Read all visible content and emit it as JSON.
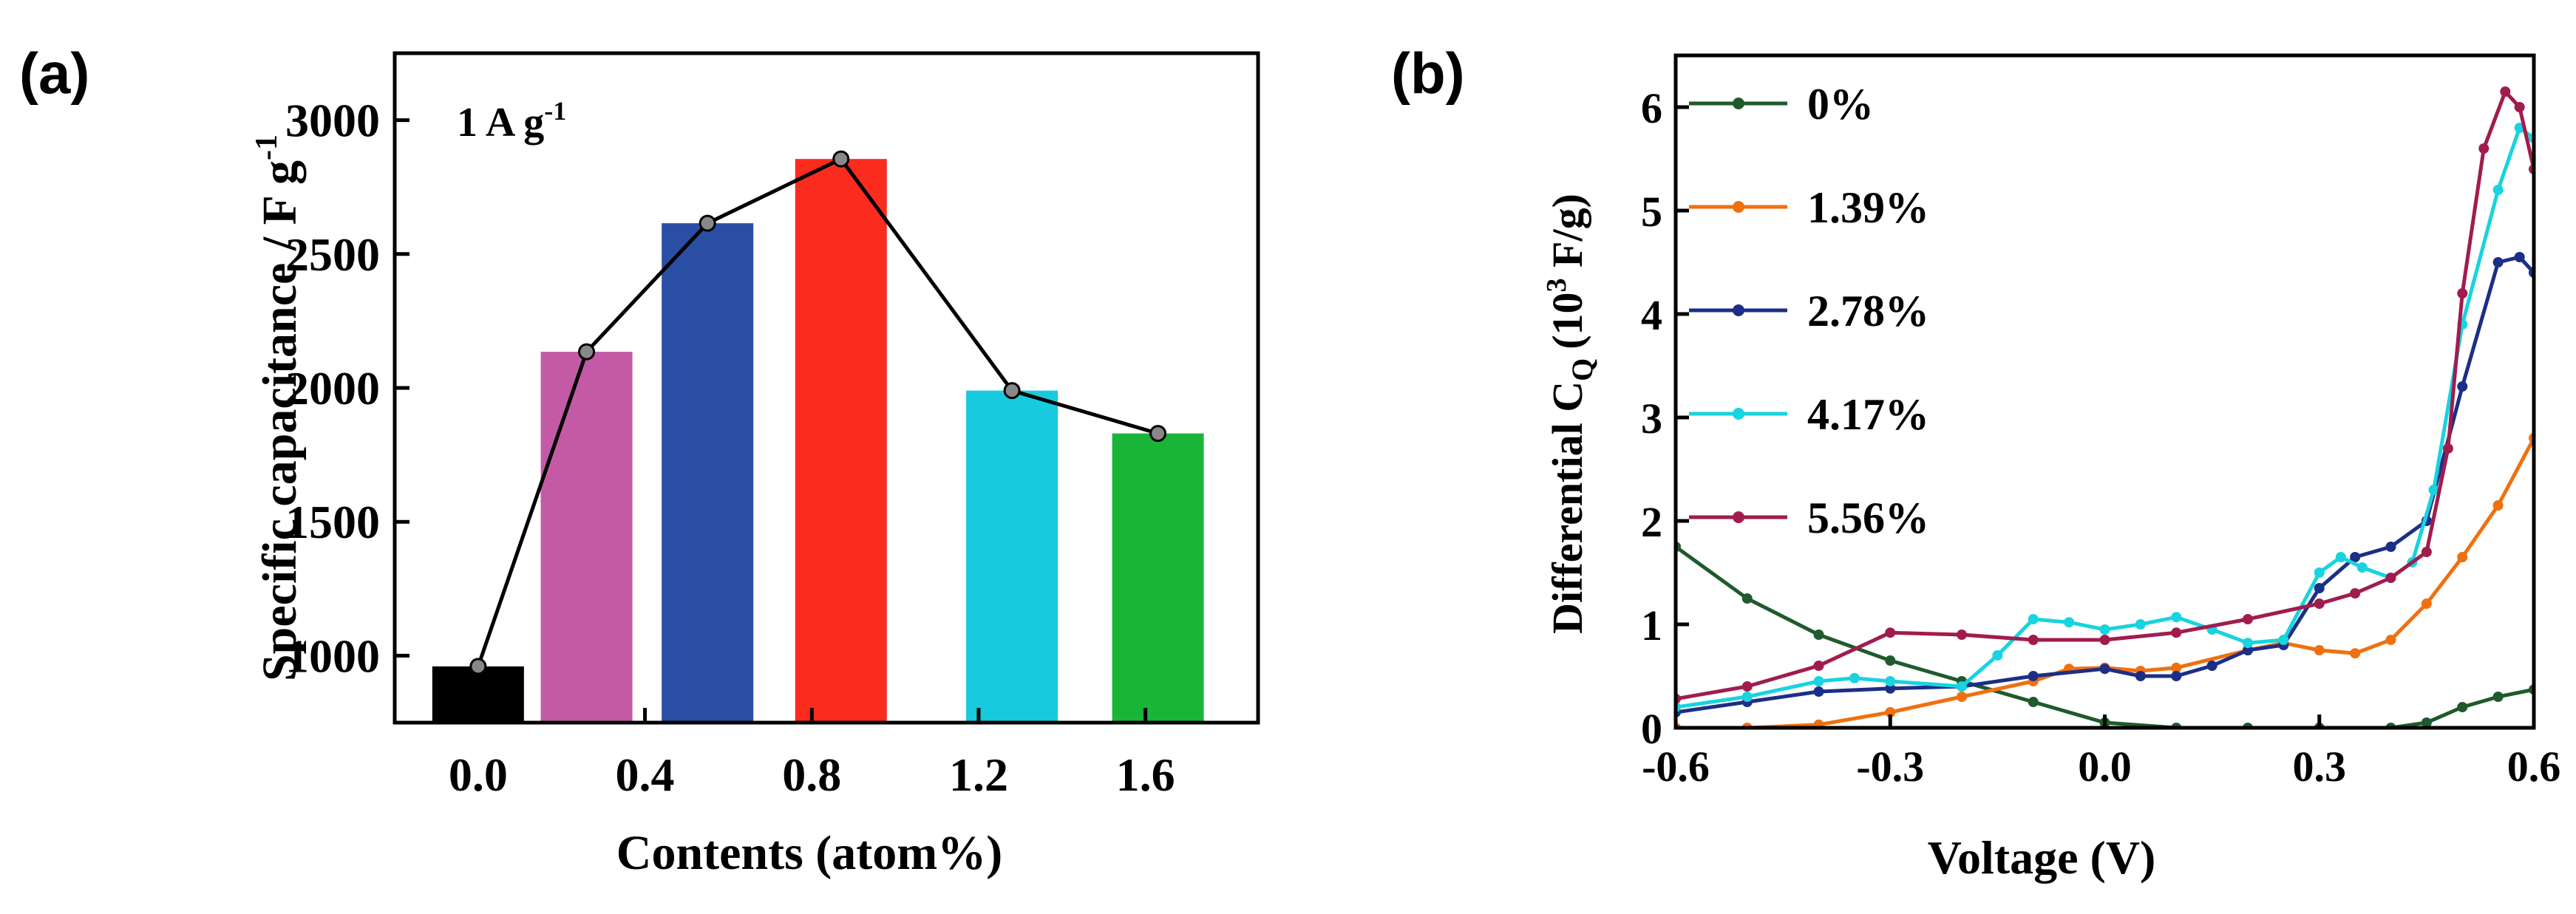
{
  "chart_data": [
    {
      "panel": "(a)",
      "type": "bar",
      "annotation": "1 A g",
      "annotation_sup": "-1",
      "xlabel": "Contents (atom%)",
      "ylabel": "Specific capacitance / F g",
      "ylabel_sup": "-1",
      "xlim": [
        -0.2,
        1.87
      ],
      "ylim": [
        750,
        3250
      ],
      "xticks": [
        "0.0",
        "0.4",
        "0.8",
        "1.2",
        "1.6"
      ],
      "xtick_values": [
        0.0,
        0.4,
        0.8,
        1.2,
        1.6
      ],
      "yticks": [
        "1000",
        "1500",
        "2000",
        "2500",
        "3000"
      ],
      "ytick_values": [
        1000,
        1500,
        2000,
        2500,
        3000
      ],
      "x": [
        0.0,
        0.26,
        0.55,
        0.87,
        1.28,
        1.63
      ],
      "values": [
        960,
        2135,
        2615,
        2855,
        1990,
        1830
      ],
      "colors": [
        "#000000",
        "#c45aa6",
        "#2a4ea4",
        "#fb2b1e",
        "#17cade",
        "#19b539"
      ],
      "line_color": "#000000"
    },
    {
      "panel": "(b)",
      "type": "line",
      "xlabel": "Voltage (V)",
      "ylabel": "Differential C",
      "ylabel_sub": "Q",
      "ylabel_unit_pre": "(10",
      "ylabel_unit_sup": "3",
      "ylabel_unit_post": " F/g)",
      "xlim": [
        -0.6,
        0.6
      ],
      "ylim": [
        0,
        6.5
      ],
      "xticks": [
        "-0.6",
        "-0.3",
        "0.0",
        "0.3",
        "0.6"
      ],
      "xtick_values": [
        -0.6,
        -0.3,
        0.0,
        0.3,
        0.6
      ],
      "yticks": [
        "0",
        "1",
        "2",
        "3",
        "4",
        "5",
        "6"
      ],
      "ytick_values": [
        0,
        1,
        2,
        3,
        4,
        5,
        6
      ],
      "series": [
        {
          "name": "0%",
          "color": "#1f5a2c",
          "x": [
            -0.6,
            -0.5,
            -0.4,
            -0.3,
            -0.2,
            -0.1,
            0.0,
            0.1,
            0.2,
            0.3,
            0.4,
            0.45,
            0.5,
            0.55,
            0.6
          ],
          "y": [
            1.75,
            1.25,
            0.9,
            0.65,
            0.45,
            0.25,
            0.05,
            0.0,
            0.0,
            0.0,
            0.0,
            0.05,
            0.2,
            0.3,
            0.37
          ]
        },
        {
          "name": "1.39%",
          "color": "#f0700f",
          "x": [
            -0.6,
            -0.5,
            -0.4,
            -0.3,
            -0.2,
            -0.1,
            -0.05,
            0.0,
            0.05,
            0.1,
            0.2,
            0.25,
            0.3,
            0.35,
            0.4,
            0.45,
            0.5,
            0.55,
            0.6
          ],
          "y": [
            0.0,
            0.0,
            0.03,
            0.15,
            0.3,
            0.45,
            0.57,
            0.58,
            0.55,
            0.58,
            0.75,
            0.82,
            0.75,
            0.72,
            0.85,
            1.2,
            1.65,
            2.15,
            2.8
          ]
        },
        {
          "name": "2.78%",
          "color": "#1c2e86",
          "x": [
            -0.6,
            -0.5,
            -0.4,
            -0.3,
            -0.2,
            -0.1,
            0.0,
            0.05,
            0.1,
            0.15,
            0.2,
            0.25,
            0.3,
            0.35,
            0.4,
            0.45,
            0.5,
            0.55,
            0.58,
            0.6
          ],
          "y": [
            0.15,
            0.25,
            0.35,
            0.38,
            0.4,
            0.5,
            0.57,
            0.5,
            0.5,
            0.6,
            0.75,
            0.8,
            1.35,
            1.65,
            1.75,
            2.0,
            3.3,
            4.5,
            4.55,
            4.4
          ]
        },
        {
          "name": "4.17%",
          "color": "#18d3e0",
          "x": [
            -0.6,
            -0.5,
            -0.4,
            -0.35,
            -0.3,
            -0.2,
            -0.15,
            -0.1,
            -0.05,
            0.0,
            0.05,
            0.1,
            0.15,
            0.2,
            0.25,
            0.3,
            0.33,
            0.36,
            0.4,
            0.43,
            0.46,
            0.5,
            0.55,
            0.58,
            0.6
          ],
          "y": [
            0.2,
            0.3,
            0.45,
            0.48,
            0.45,
            0.4,
            0.7,
            1.05,
            1.02,
            0.95,
            1.0,
            1.07,
            0.95,
            0.82,
            0.85,
            1.5,
            1.65,
            1.55,
            1.45,
            1.6,
            2.3,
            3.9,
            5.2,
            5.8,
            5.7
          ]
        },
        {
          "name": "5.56%",
          "color": "#a11c4e",
          "x": [
            -0.6,
            -0.5,
            -0.4,
            -0.3,
            -0.2,
            -0.1,
            0.0,
            0.1,
            0.2,
            0.3,
            0.35,
            0.4,
            0.45,
            0.48,
            0.5,
            0.53,
            0.56,
            0.58,
            0.6
          ],
          "y": [
            0.28,
            0.4,
            0.6,
            0.92,
            0.9,
            0.85,
            0.85,
            0.92,
            1.05,
            1.2,
            1.3,
            1.45,
            1.7,
            2.7,
            4.2,
            5.6,
            6.15,
            6.0,
            5.4
          ]
        }
      ]
    }
  ]
}
